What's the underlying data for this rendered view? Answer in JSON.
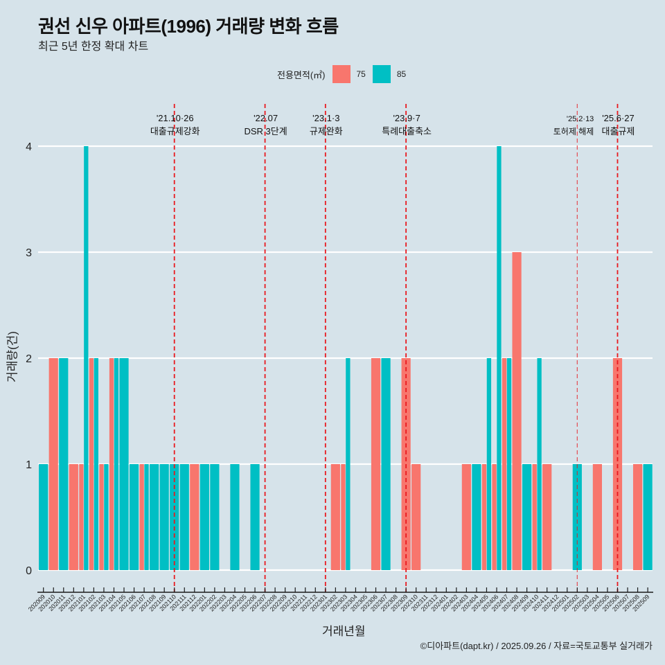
{
  "header": {
    "title": "권선 신우 아파트(1996) 거래량 변화 흐름",
    "subtitle": "최근 5년 한정 확대 차트"
  },
  "legend": {
    "title": "전용면적(㎡)",
    "items": [
      {
        "label": "75",
        "color": "#F8766D"
      },
      {
        "label": "85",
        "color": "#00BFC4"
      }
    ]
  },
  "caption": "©디아파트(dapt.kr) / 2025.09.26 / 자료=국토교통부 실거래가",
  "colors": {
    "background": "#d6e3ea",
    "grid": "#ffffff",
    "event_line": "#e8191f",
    "axis": "#1a1a1a"
  },
  "chart_data": {
    "type": "bar",
    "title": "권선 신우 아파트(1996) 거래량 변화 흐름",
    "subtitle": "최근 5년 한정 확대 차트",
    "xlabel": "거래년월",
    "ylabel": "거래량(건)",
    "ylim": [
      0,
      4
    ],
    "yticks": [
      0,
      1,
      2,
      3,
      4
    ],
    "grid": "horizontal",
    "legend_position": "top",
    "bar_position": "dodge",
    "categories": [
      "202009",
      "202010",
      "202011",
      "202012",
      "202101",
      "202102",
      "202103",
      "202104",
      "202105",
      "202106",
      "202107",
      "202108",
      "202109",
      "202110",
      "202111",
      "202112",
      "202201",
      "202202",
      "202203",
      "202204",
      "202205",
      "202206",
      "202207",
      "202208",
      "202209",
      "202210",
      "202211",
      "202212",
      "202301",
      "202302",
      "202303",
      "202304",
      "202305",
      "202306",
      "202307",
      "202308",
      "202309",
      "202310",
      "202311",
      "202312",
      "202401",
      "202402",
      "202403",
      "202404",
      "202405",
      "202406",
      "202407",
      "202408",
      "202409",
      "202410",
      "202411",
      "202412",
      "202501",
      "202502",
      "202503",
      "202504",
      "202505",
      "202506",
      "202507",
      "202508",
      "202509"
    ],
    "series": [
      {
        "name": "75",
        "color": "#F8766D",
        "values": [
          0,
          2,
          0,
          1,
          1,
          2,
          1,
          2,
          0,
          0,
          1,
          0,
          0,
          0,
          0,
          1,
          0,
          0,
          0,
          0,
          0,
          0,
          0,
          0,
          0,
          0,
          0,
          0,
          0,
          1,
          1,
          0,
          0,
          2,
          0,
          0,
          2,
          1,
          0,
          0,
          0,
          0,
          1,
          0,
          1,
          1,
          2,
          3,
          0,
          1,
          1,
          0,
          0,
          0,
          0,
          1,
          0,
          2,
          0,
          1,
          0
        ]
      },
      {
        "name": "85",
        "color": "#00BFC4",
        "values": [
          1,
          0,
          2,
          0,
          4,
          2,
          1,
          2,
          2,
          1,
          1,
          1,
          1,
          1,
          1,
          0,
          1,
          1,
          0,
          1,
          0,
          1,
          0,
          0,
          0,
          0,
          0,
          0,
          0,
          0,
          2,
          0,
          0,
          0,
          2,
          0,
          0,
          0,
          0,
          0,
          0,
          0,
          0,
          1,
          2,
          4,
          2,
          0,
          1,
          2,
          0,
          0,
          0,
          1,
          0,
          0,
          0,
          0,
          0,
          0,
          1
        ]
      }
    ],
    "annotations": [
      {
        "x": "202110",
        "date": "'21.10·26",
        "label": "대출규제강화",
        "style": "dashed"
      },
      {
        "x": "202207",
        "date": "'22.07",
        "label": "DSR 3단계",
        "style": "dashed"
      },
      {
        "x": "202301",
        "date": "'23.1·3",
        "label": "규제완화",
        "style": "dashed"
      },
      {
        "x": "202309",
        "date": "'23.9·7",
        "label": "특례대출축소",
        "style": "dashed"
      },
      {
        "x": "202502",
        "date": "'25.2·13",
        "label": "토허제 해제",
        "style": "dashed-light"
      },
      {
        "x": "202506",
        "date": "'25.6·27",
        "label": "대출규제",
        "style": "dashed"
      }
    ]
  }
}
